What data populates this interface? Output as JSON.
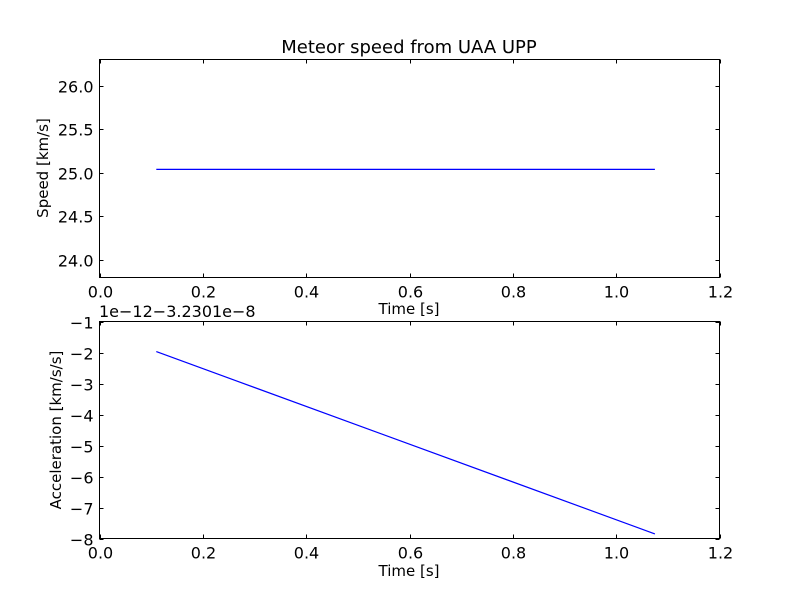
{
  "chart_data": [
    {
      "type": "line",
      "title": "Meteor speed from  UAA UPP",
      "xlabel": "Time [s]",
      "ylabel": "Speed [km/s]",
      "xlim": [
        0.0,
        1.2
      ],
      "ylim": [
        23.8,
        26.3
      ],
      "x_ticks": [
        0.0,
        0.2,
        0.4,
        0.6,
        0.8,
        1.0,
        1.2
      ],
      "x_tick_labels": [
        "0.0",
        "0.2",
        "0.4",
        "0.6",
        "0.8",
        "1.0",
        "1.2"
      ],
      "y_ticks": [
        24.0,
        24.5,
        25.0,
        25.5,
        26.0
      ],
      "y_tick_labels": [
        "24.0",
        "24.5",
        "25.0",
        "25.5",
        "26.0"
      ],
      "grid": false,
      "series": [
        {
          "name": "speed",
          "color": "#0000ff",
          "x": [
            0.11,
            1.075
          ],
          "y": [
            25.04,
            25.04
          ]
        }
      ]
    },
    {
      "type": "line",
      "title": "",
      "xlabel": "Time [s]",
      "ylabel": "Acceleration [km/s/s]",
      "offset_text": "1e−12−3.2301e−8",
      "xlim": [
        0.0,
        1.2
      ],
      "ylim": [
        -8,
        -1
      ],
      "x_ticks": [
        0.0,
        0.2,
        0.4,
        0.6,
        0.8,
        1.0,
        1.2
      ],
      "x_tick_labels": [
        "0.0",
        "0.2",
        "0.4",
        "0.6",
        "0.8",
        "1.0",
        "1.2"
      ],
      "y_ticks": [
        -8,
        -7,
        -6,
        -5,
        -4,
        -3,
        -2,
        -1
      ],
      "y_tick_labels": [
        "−8",
        "−7",
        "−6",
        "−5",
        "−4",
        "−3",
        "−2",
        "−1"
      ],
      "grid": false,
      "series": [
        {
          "name": "acceleration",
          "color": "#0000ff",
          "x": [
            0.11,
            1.075
          ],
          "y": [
            -1.97,
            -7.85
          ]
        }
      ]
    }
  ]
}
